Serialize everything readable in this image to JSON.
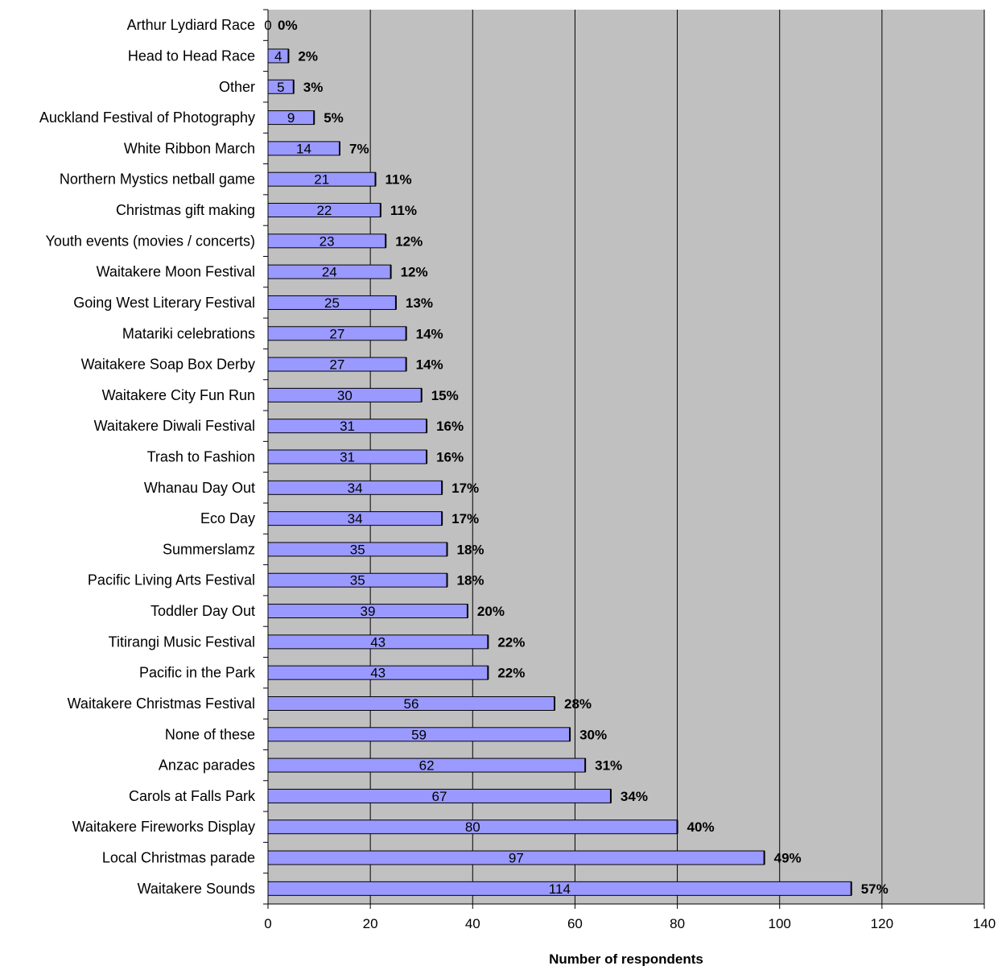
{
  "chart_data": {
    "type": "bar",
    "orientation": "horizontal",
    "categories": [
      "Arthur Lydiard Race",
      "Head to Head Race",
      "Other",
      "Auckland Festival of Photography",
      "White Ribbon March",
      "Northern Mystics netball game",
      "Christmas gift making",
      "Youth events (movies / concerts)",
      "Waitakere Moon Festival",
      "Going West Literary Festival",
      "Matariki celebrations",
      "Waitakere Soap Box Derby",
      "Waitakere City Fun Run",
      "Waitakere Diwali Festival",
      "Trash to Fashion",
      "Whanau Day Out",
      "Eco Day",
      "Summerslamz",
      "Pacific Living Arts Festival",
      "Toddler Day Out",
      "Titirangi Music Festival",
      "Pacific in the Park",
      "Waitakere Christmas Festival",
      "None of these",
      "Anzac parades",
      "Carols at Falls Park",
      "Waitakere Fireworks Display",
      "Local Christmas parade",
      "Waitakere Sounds"
    ],
    "values": [
      0,
      4,
      5,
      9,
      14,
      21,
      22,
      23,
      24,
      25,
      27,
      27,
      30,
      31,
      31,
      34,
      34,
      35,
      35,
      39,
      43,
      43,
      56,
      59,
      62,
      67,
      80,
      97,
      114
    ],
    "percent_labels": [
      "0%",
      "2%",
      "3%",
      "5%",
      "7%",
      "11%",
      "11%",
      "12%",
      "12%",
      "13%",
      "14%",
      "14%",
      "15%",
      "16%",
      "16%",
      "17%",
      "17%",
      "18%",
      "18%",
      "20%",
      "22%",
      "22%",
      "28%",
      "30%",
      "31%",
      "34%",
      "40%",
      "49%",
      "57%"
    ],
    "xlabel": "Number of respondents",
    "xlim": [
      0,
      140
    ],
    "xticks": [
      0,
      20,
      40,
      60,
      80,
      100,
      120,
      140
    ],
    "grid": true,
    "colors": {
      "bar": "#9999ff",
      "bar_border": "#000000",
      "plot_bg": "#c0c0c0",
      "grid": "#000000"
    }
  }
}
